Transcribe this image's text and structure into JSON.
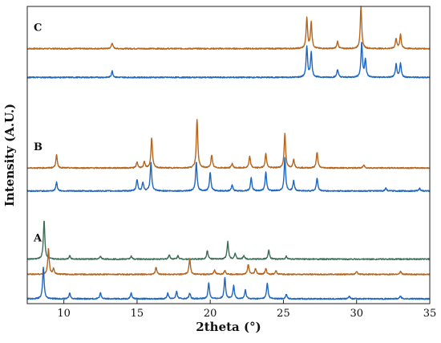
{
  "chart_data": {
    "type": "line",
    "title": "",
    "xlabel": "2theta (°)",
    "ylabel": "Intensity (A.U.)",
    "xlim": [
      7.5,
      35
    ],
    "x_ticks": [
      10,
      15,
      20,
      25,
      30,
      35
    ],
    "y_ticks_shown": false,
    "grid": false,
    "legend": "none",
    "colors": {
      "orange": "#b5651d",
      "blue": "#1f66c1",
      "green": "#3c6e57",
      "axis": "#222222"
    },
    "panels": [
      {
        "label": "C",
        "series": [
          {
            "color": "orange",
            "baseline": 0.87,
            "peaks": [
              [
                13.3,
                0.02
              ],
              [
                26.6,
                0.105
              ],
              [
                26.9,
                0.09
              ],
              [
                28.7,
                0.025
              ],
              [
                30.3,
                0.145
              ],
              [
                32.7,
                0.035
              ],
              [
                33.0,
                0.05
              ]
            ]
          },
          {
            "color": "blue",
            "baseline": 0.77,
            "peaks": [
              [
                13.3,
                0.022
              ],
              [
                26.6,
                0.105
              ],
              [
                26.9,
                0.085
              ],
              [
                28.7,
                0.028
              ],
              [
                30.35,
                0.12
              ],
              [
                30.6,
                0.06
              ],
              [
                32.7,
                0.045
              ],
              [
                33.0,
                0.05
              ]
            ]
          }
        ]
      },
      {
        "label": "B",
        "series": [
          {
            "color": "orange",
            "baseline": 0.455,
            "peaks": [
              [
                9.5,
                0.045
              ],
              [
                15.0,
                0.02
              ],
              [
                15.5,
                0.02
              ],
              [
                16.0,
                0.105
              ],
              [
                19.1,
                0.17
              ],
              [
                20.1,
                0.045
              ],
              [
                21.5,
                0.015
              ],
              [
                22.7,
                0.04
              ],
              [
                23.8,
                0.05
              ],
              [
                25.1,
                0.12
              ],
              [
                25.7,
                0.03
              ],
              [
                27.3,
                0.055
              ],
              [
                30.5,
                0.01
              ]
            ]
          },
          {
            "color": "blue",
            "baseline": 0.375,
            "peaks": [
              [
                9.5,
                0.03
              ],
              [
                15.0,
                0.04
              ],
              [
                15.4,
                0.03
              ],
              [
                15.95,
                0.1
              ],
              [
                19.05,
                0.1
              ],
              [
                20.0,
                0.065
              ],
              [
                21.5,
                0.02
              ],
              [
                22.8,
                0.045
              ],
              [
                23.8,
                0.065
              ],
              [
                25.1,
                0.115
              ],
              [
                25.7,
                0.035
              ],
              [
                27.3,
                0.045
              ],
              [
                32.0,
                0.01
              ],
              [
                34.3,
                0.01
              ]
            ]
          }
        ]
      },
      {
        "label": "A",
        "series": [
          {
            "color": "green",
            "baseline": 0.138,
            "peaks": [
              [
                8.65,
                0.135
              ],
              [
                10.4,
                0.012
              ],
              [
                12.5,
                0.01
              ],
              [
                14.6,
                0.01
              ],
              [
                17.2,
                0.015
              ],
              [
                17.8,
                0.012
              ],
              [
                19.8,
                0.03
              ],
              [
                21.2,
                0.06
              ],
              [
                21.7,
                0.02
              ],
              [
                22.3,
                0.012
              ],
              [
                24.0,
                0.03
              ],
              [
                25.2,
                0.01
              ]
            ]
          },
          {
            "color": "orange",
            "baseline": 0.085,
            "peaks": [
              [
                8.95,
                0.09
              ],
              [
                9.3,
                0.02
              ],
              [
                16.3,
                0.025
              ],
              [
                18.6,
                0.055
              ],
              [
                20.3,
                0.015
              ],
              [
                21.0,
                0.015
              ],
              [
                22.6,
                0.035
              ],
              [
                23.1,
                0.02
              ],
              [
                23.8,
                0.02
              ],
              [
                24.5,
                0.012
              ],
              [
                30.0,
                0.01
              ],
              [
                33.0,
                0.01
              ]
            ]
          },
          {
            "color": "blue",
            "baseline": 0.0,
            "peaks": [
              [
                8.6,
                0.11
              ],
              [
                10.4,
                0.02
              ],
              [
                12.5,
                0.02
              ],
              [
                14.6,
                0.02
              ],
              [
                17.1,
                0.02
              ],
              [
                17.7,
                0.025
              ],
              [
                18.6,
                0.02
              ],
              [
                19.9,
                0.055
              ],
              [
                21.0,
                0.075
              ],
              [
                21.6,
                0.045
              ],
              [
                22.4,
                0.03
              ],
              [
                23.9,
                0.055
              ],
              [
                25.2,
                0.015
              ],
              [
                29.5,
                0.01
              ],
              [
                33.0,
                0.01
              ]
            ]
          }
        ]
      }
    ]
  }
}
